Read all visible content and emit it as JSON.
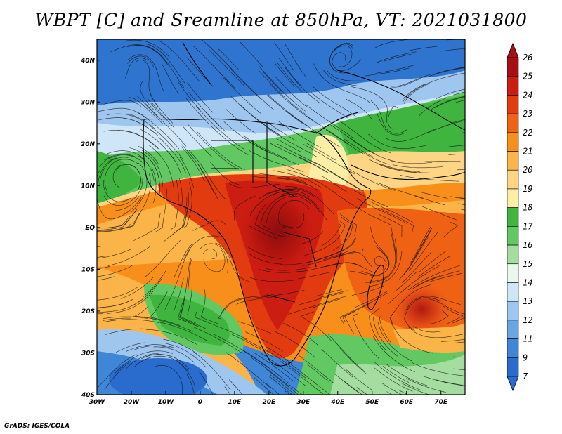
{
  "title": "WBPT [C] and Sreamline at 850hPa, VT: 2021031800",
  "credit": "GrADS: IGES/COLA",
  "map": {
    "lon_range": [
      -30,
      77
    ],
    "lat_range": [
      -40,
      45
    ],
    "lon_ticks": [
      "30W",
      "20W",
      "10W",
      "0",
      "10E",
      "20E",
      "30E",
      "40E",
      "50E",
      "60E",
      "70E"
    ],
    "lat_ticks": [
      "40N",
      "30N",
      "20N",
      "10N",
      "EQ",
      "10S",
      "20S",
      "30S",
      "40S"
    ]
  },
  "colorbar": {
    "labels": [
      "26",
      "25",
      "24",
      "23",
      "22",
      "21",
      "20",
      "19",
      "18",
      "17",
      "16",
      "15",
      "14",
      "13",
      "12",
      "11",
      "9",
      "7"
    ],
    "colors": [
      "#a50f15",
      "#cc1d12",
      "#e33b10",
      "#f06213",
      "#f78f1a",
      "#fbb447",
      "#fdd585",
      "#fdeea6",
      "#3fb53f",
      "#62c862",
      "#a5dca0",
      "#e9f7ee",
      "#cfe6f8",
      "#9ec6ef",
      "#6aa6e3",
      "#3f86d6",
      "#2a6ccd"
    ]
  },
  "colors": {
    "land_line": "#000000",
    "stream": "#111111"
  }
}
